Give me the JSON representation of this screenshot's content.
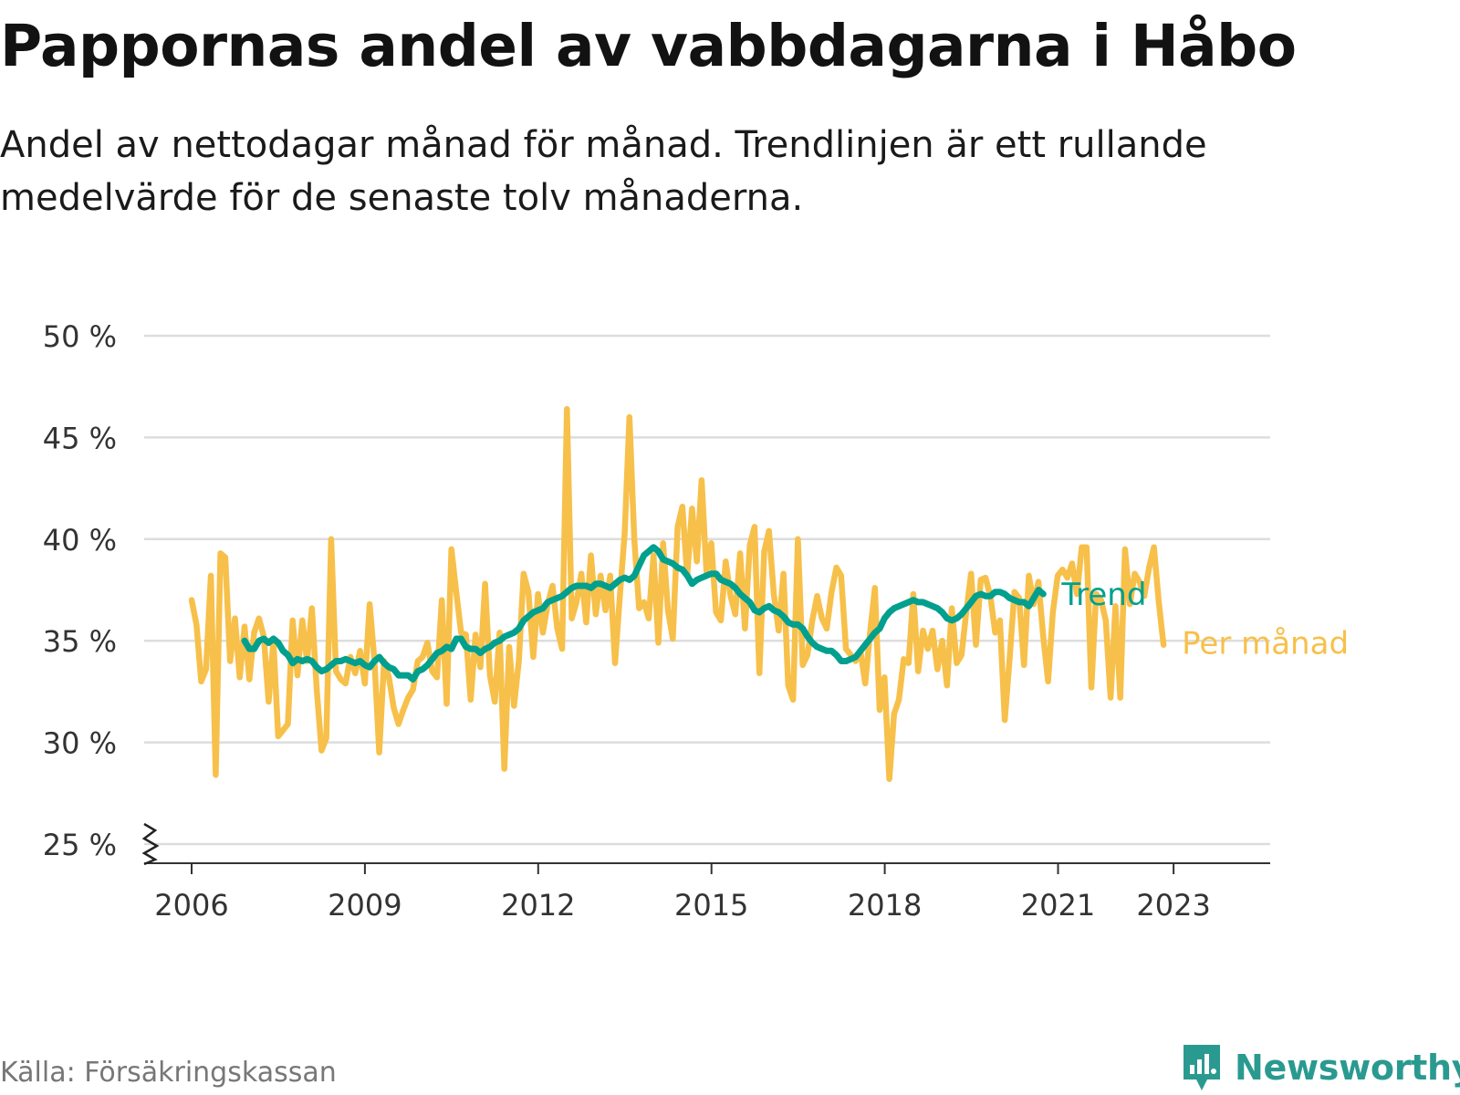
{
  "title": "Pappornas andel av vabbdagarna i Håbo",
  "subtitle": "Andel av nettodagar månad för månad. Trendlinjen är ett rullande medelvärde för de senaste tolv månaderna.",
  "source": "Källa: Försäkringskassan",
  "brand": {
    "name": "Newsworthy",
    "icon": "newsworthy-logo-icon"
  },
  "colors": {
    "trend": "#009f8e",
    "monthly": "#f7c04a",
    "grid": "#dddddd",
    "axis": "#333333",
    "brand": "#2a9a90"
  },
  "chart_data": {
    "type": "line",
    "title": "Pappornas andel av vabbdagarna i Håbo",
    "xlabel": "",
    "ylabel": "",
    "ylim": [
      25,
      50
    ],
    "y_ticks": [
      50,
      45,
      40,
      35,
      30,
      25
    ],
    "y_tick_labels": [
      "50 %",
      "45 %",
      "40 %",
      "35 %",
      "30 %",
      "25 %"
    ],
    "x_ticks": [
      2006,
      2009,
      2012,
      2015,
      2018,
      2021,
      2023
    ],
    "x_tick_labels": [
      "2006",
      "2009",
      "2012",
      "2015",
      "2018",
      "2021",
      "2023"
    ],
    "grid": true,
    "axis_break": true,
    "series": [
      {
        "name": "Per månad",
        "x_start": 2006.0,
        "x_step": 0.0833,
        "values": [
          37.0,
          35.8,
          33.0,
          33.6,
          38.2,
          28.4,
          39.3,
          39.1,
          34.0,
          36.1,
          33.2,
          35.7,
          33.1,
          35.4,
          36.1,
          35.2,
          32.0,
          35.0,
          30.3,
          30.6,
          30.9,
          36.0,
          33.3,
          36.0,
          34.0,
          36.6,
          32.6,
          29.6,
          30.2,
          40.0,
          33.5,
          33.1,
          32.9,
          34.2,
          33.4,
          34.5,
          32.9,
          36.8,
          34.0,
          29.5,
          34.0,
          33.2,
          31.7,
          30.9,
          31.6,
          32.2,
          32.6,
          34.0,
          34.2,
          34.9,
          33.5,
          33.2,
          37.0,
          31.9,
          39.5,
          37.4,
          35.4,
          35.3,
          32.1,
          35.3,
          33.7,
          37.8,
          33.3,
          32.0,
          35.4,
          28.7,
          34.7,
          31.8,
          34.0,
          38.3,
          37.4,
          34.2,
          37.3,
          35.4,
          36.8,
          37.7,
          35.6,
          34.6,
          46.4,
          36.1,
          36.9,
          38.3,
          35.9,
          39.2,
          36.3,
          38.2,
          36.5,
          38.2,
          33.9,
          37.2,
          40.3,
          46.0,
          40.0,
          36.6,
          36.9,
          36.1,
          39.2,
          34.9,
          39.8,
          36.5,
          35.1,
          40.6,
          41.6,
          38.2,
          41.5,
          38.9,
          42.9,
          38.4,
          39.8,
          36.4,
          36.0,
          38.9,
          37.2,
          36.3,
          39.3,
          35.6,
          39.7,
          40.6,
          33.4,
          39.4,
          40.4,
          37.3,
          35.5,
          38.3,
          32.8,
          32.1,
          40.0,
          33.8,
          34.3,
          36.0,
          37.2,
          36.1,
          35.6,
          37.4,
          38.6,
          38.2,
          34.6,
          34.3,
          34.0,
          34.5,
          32.9,
          35.4,
          37.6,
          31.6,
          33.2,
          28.2,
          31.4,
          32.1,
          34.1,
          33.9,
          37.3,
          33.5,
          35.5,
          34.6,
          35.5,
          33.6,
          35.0,
          32.8,
          36.6,
          33.9,
          34.3,
          36.4,
          38.3,
          34.8,
          38.0,
          38.1,
          37.2,
          35.4,
          36.0,
          31.1,
          34.1,
          37.4,
          37.1,
          33.8,
          38.2,
          36.8,
          37.9,
          35.2,
          33.0,
          36.4,
          38.2,
          38.5,
          38.1,
          38.8,
          37.3,
          39.6,
          39.6,
          32.7,
          37.3,
          37.0,
          36.0,
          32.2,
          36.7,
          32.2,
          39.5,
          36.8,
          38.3,
          37.9,
          37.2,
          38.6,
          39.6,
          36.9,
          34.8
        ]
      },
      {
        "name": "Trend",
        "x_start": 2006.917,
        "x_step": 0.0833,
        "values": [
          35.0,
          34.6,
          34.6,
          35.0,
          35.1,
          34.9,
          35.1,
          34.9,
          34.5,
          34.3,
          33.9,
          34.1,
          34.0,
          34.1,
          34.0,
          33.7,
          33.5,
          33.6,
          33.8,
          34.0,
          34.0,
          34.1,
          34.0,
          33.9,
          34.0,
          33.8,
          33.7,
          34.0,
          34.2,
          33.9,
          33.7,
          33.6,
          33.3,
          33.3,
          33.3,
          33.1,
          33.5,
          33.6,
          33.8,
          34.1,
          34.4,
          34.5,
          34.7,
          34.6,
          35.1,
          35.1,
          34.7,
          34.6,
          34.6,
          34.4,
          34.6,
          34.7,
          34.9,
          35.0,
          35.2,
          35.3,
          35.4,
          35.6,
          36.0,
          36.2,
          36.4,
          36.5,
          36.6,
          36.9,
          37.0,
          37.1,
          37.2,
          37.4,
          37.6,
          37.7,
          37.7,
          37.7,
          37.6,
          37.8,
          37.8,
          37.7,
          37.6,
          37.8,
          38.0,
          38.1,
          38.0,
          38.2,
          38.7,
          39.2,
          39.4,
          39.6,
          39.4,
          39.0,
          38.9,
          38.8,
          38.6,
          38.5,
          38.2,
          37.8,
          38.0,
          38.1,
          38.2,
          38.3,
          38.3,
          38.0,
          37.9,
          37.8,
          37.6,
          37.3,
          37.1,
          36.9,
          36.5,
          36.4,
          36.6,
          36.7,
          36.5,
          36.4,
          36.2,
          35.9,
          35.8,
          35.8,
          35.6,
          35.2,
          34.9,
          34.7,
          34.6,
          34.5,
          34.5,
          34.3,
          34.0,
          34.0,
          34.1,
          34.2,
          34.5,
          34.8,
          35.1,
          35.4,
          35.6,
          36.1,
          36.4,
          36.6,
          36.7,
          36.8,
          36.9,
          37.0,
          36.9,
          36.9,
          36.8,
          36.7,
          36.6,
          36.4,
          36.1,
          36.0,
          36.1,
          36.3,
          36.6,
          36.9,
          37.2,
          37.3,
          37.2,
          37.2,
          37.4,
          37.4,
          37.3,
          37.1,
          37.0,
          36.9,
          36.9,
          36.7,
          37.1,
          37.5,
          37.3
        ]
      }
    ],
    "series_labels": [
      "Trend",
      "Per månad"
    ]
  }
}
